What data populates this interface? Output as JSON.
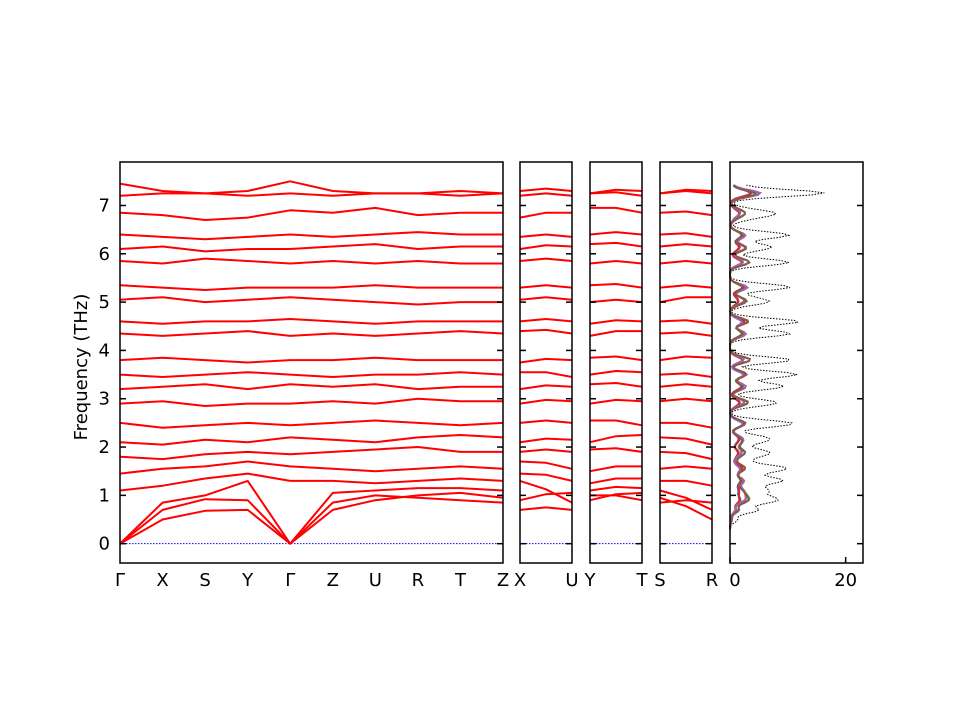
{
  "chart_data": {
    "type": "line",
    "ylabel": "Frequency (THz)",
    "ylim": [
      -0.4,
      7.9
    ],
    "yticks": [
      0,
      1,
      2,
      3,
      4,
      5,
      6,
      7
    ],
    "grid": false,
    "band_color": "#ff0000",
    "zero_line_color": "#0000ff",
    "panels": [
      {
        "id": "p1",
        "labels": [
          "Γ",
          "X",
          "S",
          "Y",
          "Γ",
          "Z",
          "U",
          "R",
          "T",
          "Z"
        ],
        "xlim": [
          0,
          9
        ]
      },
      {
        "id": "p2",
        "labels": [
          "X",
          "U"
        ],
        "xlim": [
          0,
          1
        ]
      },
      {
        "id": "p3",
        "labels": [
          "Y",
          "T"
        ],
        "xlim": [
          0,
          1
        ]
      },
      {
        "id": "p4",
        "labels": [
          "S",
          "R"
        ],
        "xlim": [
          0,
          1
        ]
      }
    ],
    "band_sample_frequencies": [
      [
        0.0,
        0.7,
        0.92,
        0.9,
        0.0,
        1.05,
        1.1,
        1.15,
        1.15,
        1.1
      ],
      [
        0.0,
        0.5,
        0.68,
        0.7,
        0.0,
        0.7,
        0.9,
        1.0,
        1.05,
        0.95
      ],
      [
        0.0,
        0.85,
        1.0,
        1.3,
        0.0,
        0.85,
        1.0,
        0.95,
        0.9,
        0.85
      ],
      [
        1.1,
        1.2,
        1.35,
        1.45,
        1.3,
        1.3,
        1.25,
        1.3,
        1.35,
        1.3
      ],
      [
        1.45,
        1.55,
        1.6,
        1.7,
        1.6,
        1.55,
        1.5,
        1.55,
        1.6,
        1.55
      ],
      [
        1.8,
        1.75,
        1.85,
        1.9,
        1.85,
        1.9,
        1.95,
        2.0,
        1.9,
        1.9
      ],
      [
        2.1,
        2.05,
        2.15,
        2.1,
        2.2,
        2.15,
        2.1,
        2.2,
        2.25,
        2.2
      ],
      [
        2.5,
        2.4,
        2.45,
        2.5,
        2.45,
        2.5,
        2.55,
        2.5,
        2.45,
        2.5
      ],
      [
        2.9,
        2.95,
        2.85,
        2.9,
        2.9,
        2.95,
        2.9,
        3.0,
        2.95,
        2.95
      ],
      [
        3.2,
        3.25,
        3.3,
        3.2,
        3.3,
        3.25,
        3.3,
        3.2,
        3.25,
        3.25
      ],
      [
        3.5,
        3.45,
        3.5,
        3.55,
        3.5,
        3.45,
        3.5,
        3.5,
        3.55,
        3.5
      ],
      [
        3.8,
        3.85,
        3.8,
        3.75,
        3.8,
        3.8,
        3.85,
        3.8,
        3.8,
        3.8
      ],
      [
        4.35,
        4.3,
        4.35,
        4.4,
        4.3,
        4.35,
        4.3,
        4.35,
        4.4,
        4.35
      ],
      [
        4.6,
        4.55,
        4.6,
        4.6,
        4.65,
        4.6,
        4.55,
        4.6,
        4.6,
        4.6
      ],
      [
        5.05,
        5.1,
        5.0,
        5.05,
        5.1,
        5.05,
        5.0,
        4.95,
        5.0,
        5.0
      ],
      [
        5.35,
        5.3,
        5.25,
        5.3,
        5.3,
        5.3,
        5.35,
        5.3,
        5.3,
        5.3
      ],
      [
        5.85,
        5.8,
        5.9,
        5.85,
        5.8,
        5.85,
        5.8,
        5.85,
        5.8,
        5.8
      ],
      [
        6.1,
        6.15,
        6.05,
        6.1,
        6.1,
        6.15,
        6.2,
        6.1,
        6.15,
        6.15
      ],
      [
        6.4,
        6.35,
        6.3,
        6.35,
        6.4,
        6.35,
        6.4,
        6.45,
        6.4,
        6.4
      ],
      [
        6.85,
        6.8,
        6.7,
        6.75,
        6.9,
        6.85,
        6.95,
        6.8,
        6.85,
        6.85
      ],
      [
        7.2,
        7.25,
        7.25,
        7.2,
        7.25,
        7.2,
        7.25,
        7.25,
        7.2,
        7.25
      ],
      [
        7.45,
        7.3,
        7.25,
        7.3,
        7.5,
        7.3,
        7.25,
        7.25,
        7.3,
        7.25
      ]
    ],
    "dos": {
      "xlim": [
        0,
        23
      ],
      "xticks": [
        0,
        20
      ],
      "total_color": "#000000",
      "partial_colors": [
        "#1f77b4",
        "#ff7f0e",
        "#2ca02c",
        "#d62728",
        "#9467bd",
        "#8c564b"
      ]
    }
  }
}
